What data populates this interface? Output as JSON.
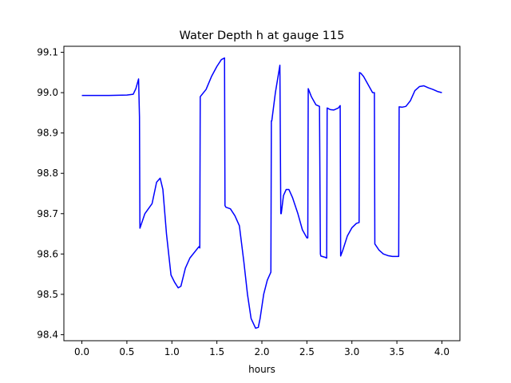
{
  "chart_data": {
    "type": "line",
    "title": "Water Depth h at gauge 115",
    "xlabel": "hours",
    "ylabel": "",
    "xlim": [
      -0.2,
      4.2
    ],
    "ylim": [
      98.385,
      99.115
    ],
    "x_ticks": [
      0.0,
      0.5,
      1.0,
      1.5,
      2.0,
      2.5,
      3.0,
      3.5,
      4.0
    ],
    "x_tick_labels": [
      "0.0",
      "0.5",
      "1.0",
      "1.5",
      "2.0",
      "2.5",
      "3.0",
      "3.5",
      "4.0"
    ],
    "y_ticks": [
      98.4,
      98.5,
      98.6,
      98.7,
      98.8,
      98.9,
      99.0,
      99.1
    ],
    "y_tick_labels": [
      "98.4",
      "98.5",
      "98.6",
      "98.7",
      "98.8",
      "98.9",
      "99.0",
      "99.1"
    ],
    "grid": false,
    "series": [
      {
        "color": "#0000ff",
        "x": [
          0.0,
          0.3,
          0.5,
          0.57,
          0.6,
          0.63,
          0.64,
          0.645,
          0.7,
          0.78,
          0.83,
          0.87,
          0.9,
          0.94,
          0.99,
          1.03,
          1.07,
          1.1,
          1.15,
          1.2,
          1.3,
          1.31,
          1.315,
          1.38,
          1.44,
          1.5,
          1.55,
          1.585,
          1.59,
          1.6,
          1.65,
          1.7,
          1.75,
          1.8,
          1.84,
          1.88,
          1.93,
          1.96,
          1.98,
          2.02,
          2.06,
          2.1,
          2.105,
          2.11,
          2.15,
          2.2,
          2.21,
          2.215,
          2.24,
          2.27,
          2.3,
          2.34,
          2.4,
          2.45,
          2.5,
          2.51,
          2.515,
          2.55,
          2.6,
          2.64,
          2.65,
          2.655,
          2.7,
          2.72,
          2.725,
          2.76,
          2.8,
          2.85,
          2.87,
          2.875,
          2.9,
          2.95,
          3.0,
          3.05,
          3.08,
          3.085,
          3.1,
          3.13,
          3.18,
          3.23,
          3.25,
          3.255,
          3.3,
          3.35,
          3.4,
          3.45,
          3.52,
          3.525,
          3.56,
          3.6,
          3.65,
          3.7,
          3.75,
          3.8,
          3.85,
          3.9,
          3.95,
          4.0
        ],
        "y": [
          98.993,
          98.993,
          98.994,
          98.996,
          99.01,
          99.034,
          98.94,
          98.664,
          98.7,
          98.725,
          98.778,
          98.788,
          98.76,
          98.65,
          98.548,
          98.53,
          98.516,
          98.52,
          98.565,
          98.59,
          98.618,
          98.615,
          98.99,
          99.008,
          99.04,
          99.065,
          99.082,
          99.086,
          98.72,
          98.716,
          98.712,
          98.695,
          98.67,
          98.58,
          98.5,
          98.44,
          98.416,
          98.418,
          98.44,
          98.5,
          98.535,
          98.555,
          98.93,
          98.93,
          99.0,
          99.068,
          98.7,
          98.7,
          98.745,
          98.76,
          98.76,
          98.74,
          98.7,
          98.66,
          98.64,
          98.64,
          99.01,
          98.99,
          98.97,
          98.966,
          98.6,
          98.595,
          98.592,
          98.59,
          98.962,
          98.958,
          98.957,
          98.962,
          98.968,
          98.595,
          98.61,
          98.645,
          98.665,
          98.676,
          98.678,
          99.05,
          99.048,
          99.04,
          99.02,
          99.0,
          99.0,
          98.625,
          98.61,
          98.6,
          98.596,
          98.594,
          98.594,
          98.965,
          98.964,
          98.966,
          98.98,
          99.005,
          99.015,
          99.017,
          99.012,
          99.008,
          99.003,
          99.0
        ]
      }
    ]
  }
}
